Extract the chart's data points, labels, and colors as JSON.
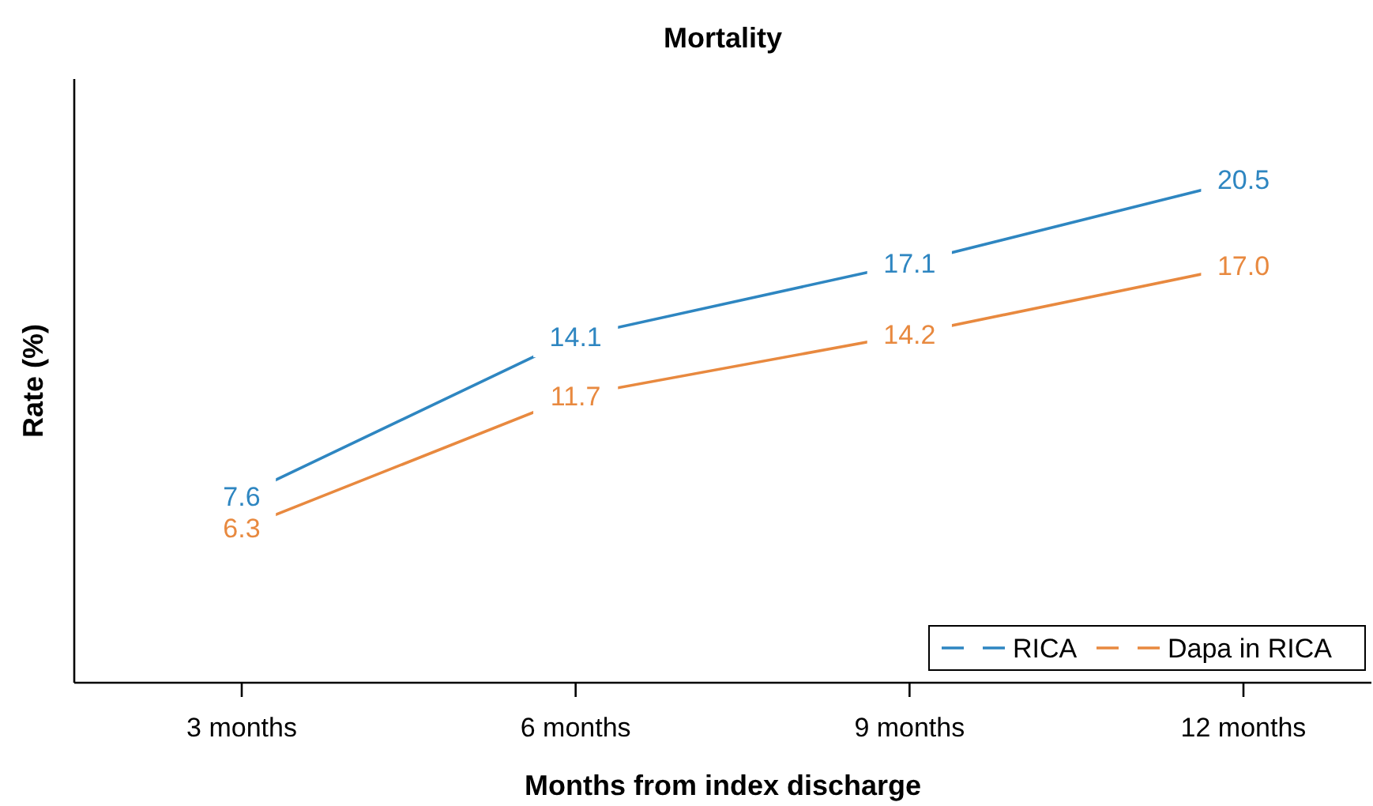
{
  "chart_data": {
    "type": "line",
    "title": "Mortality",
    "xlabel": "Months from index discharge",
    "ylabel": "Rate (%)",
    "categories": [
      "3 months",
      "6 months",
      "9 months",
      "12 months"
    ],
    "series": [
      {
        "name": "RICA",
        "color": "#2e86c1",
        "values": [
          7.6,
          14.1,
          17.1,
          20.5
        ],
        "value_labels": [
          "7.6",
          "14.1",
          "17.1",
          "20.5"
        ]
      },
      {
        "name": "Dapa in RICA",
        "color": "#e8893f",
        "values": [
          6.3,
          11.7,
          14.2,
          17.0
        ],
        "value_labels": [
          "6.3",
          "11.7",
          "14.2",
          "17.0"
        ]
      }
    ],
    "legend": "bottom right",
    "line_style": "solid",
    "tick_labels": "x"
  }
}
